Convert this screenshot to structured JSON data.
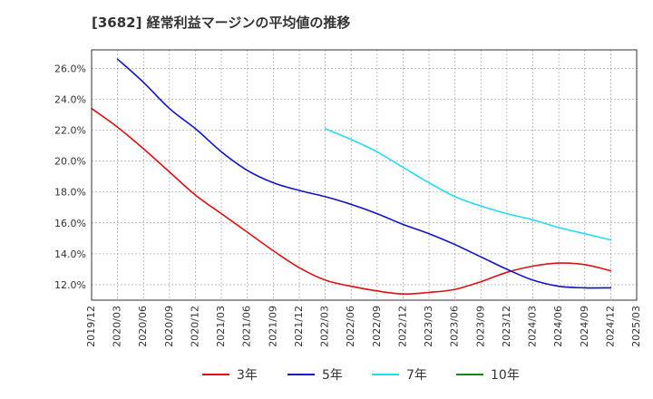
{
  "chart_data": {
    "type": "line",
    "title": "[3682]  経常利益マージンの平均値の推移",
    "x_ticks": [
      "2019/12",
      "2020/03",
      "2020/06",
      "2020/09",
      "2020/12",
      "2021/03",
      "2021/06",
      "2021/09",
      "2021/12",
      "2022/03",
      "2022/06",
      "2022/09",
      "2022/12",
      "2023/03",
      "2023/06",
      "2023/09",
      "2023/12",
      "2024/03",
      "2024/06",
      "2024/09",
      "2024/12",
      "2025/03"
    ],
    "y_ticks": [
      "12.0%",
      "14.0%",
      "16.0%",
      "18.0%",
      "20.0%",
      "22.0%",
      "24.0%",
      "26.0%"
    ],
    "y_tick_values": [
      12,
      14,
      16,
      18,
      20,
      22,
      24,
      26
    ],
    "ylim": [
      11.0,
      27.2
    ],
    "grid": true,
    "legend_position": "bottom",
    "series": [
      {
        "name": "3年",
        "color": "#dd1111",
        "points": [
          [
            "2019/12",
            23.4
          ],
          [
            "2020/03",
            22.2
          ],
          [
            "2020/06",
            20.8
          ],
          [
            "2020/09",
            19.3
          ],
          [
            "2020/12",
            17.8
          ],
          [
            "2021/03",
            16.6
          ],
          [
            "2021/06",
            15.4
          ],
          [
            "2021/09",
            14.2
          ],
          [
            "2021/12",
            13.1
          ],
          [
            "2022/03",
            12.3
          ],
          [
            "2022/06",
            11.9
          ],
          [
            "2022/09",
            11.6
          ],
          [
            "2022/12",
            11.4
          ],
          [
            "2023/03",
            11.5
          ],
          [
            "2023/06",
            11.7
          ],
          [
            "2023/09",
            12.2
          ],
          [
            "2023/12",
            12.8
          ],
          [
            "2024/03",
            13.2
          ],
          [
            "2024/06",
            13.4
          ],
          [
            "2024/09",
            13.3
          ],
          [
            "2024/12",
            12.9
          ]
        ]
      },
      {
        "name": "5年",
        "color": "#1111cc",
        "points": [
          [
            "2020/03",
            26.6
          ],
          [
            "2020/06",
            25.1
          ],
          [
            "2020/09",
            23.4
          ],
          [
            "2020/12",
            22.1
          ],
          [
            "2021/03",
            20.6
          ],
          [
            "2021/06",
            19.4
          ],
          [
            "2021/09",
            18.6
          ],
          [
            "2021/12",
            18.1
          ],
          [
            "2022/03",
            17.7
          ],
          [
            "2022/06",
            17.2
          ],
          [
            "2022/09",
            16.6
          ],
          [
            "2022/12",
            15.9
          ],
          [
            "2023/03",
            15.3
          ],
          [
            "2023/06",
            14.6
          ],
          [
            "2023/09",
            13.8
          ],
          [
            "2023/12",
            13.0
          ],
          [
            "2024/03",
            12.3
          ],
          [
            "2024/06",
            11.9
          ],
          [
            "2024/09",
            11.8
          ],
          [
            "2024/12",
            11.8
          ]
        ]
      },
      {
        "name": "7年",
        "color": "#22ddee",
        "points": [
          [
            "2022/03",
            22.1
          ],
          [
            "2022/06",
            21.4
          ],
          [
            "2022/09",
            20.6
          ],
          [
            "2022/12",
            19.6
          ],
          [
            "2023/03",
            18.6
          ],
          [
            "2023/06",
            17.7
          ],
          [
            "2023/09",
            17.1
          ],
          [
            "2023/12",
            16.6
          ],
          [
            "2024/03",
            16.2
          ],
          [
            "2024/06",
            15.7
          ],
          [
            "2024/09",
            15.3
          ],
          [
            "2024/12",
            14.9
          ]
        ]
      },
      {
        "name": "10年",
        "color": "#118811",
        "points": []
      }
    ]
  }
}
